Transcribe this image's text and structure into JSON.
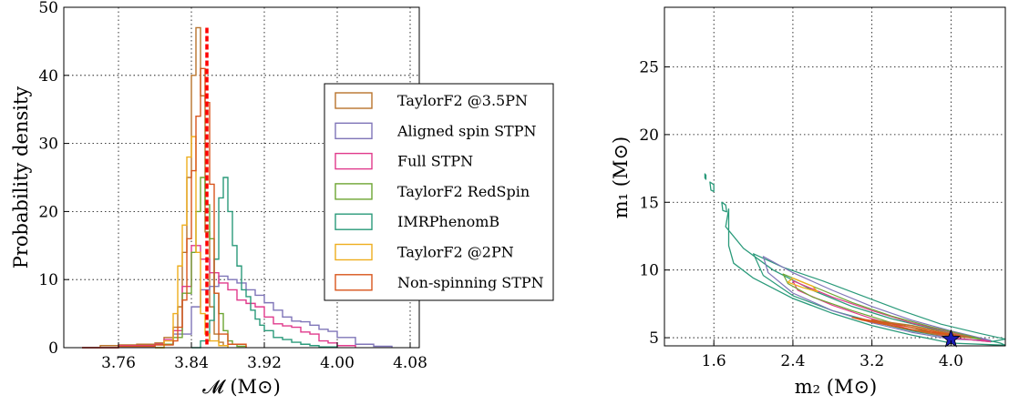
{
  "chart_data": [
    {
      "type": "histogram",
      "title": "",
      "xlabel": "𝓜 (M⊙)",
      "ylabel": "Probability density",
      "xlim": [
        3.7,
        4.09
      ],
      "ylim": [
        0,
        50
      ],
      "xticks": [
        "3.76",
        "3.84",
        "3.92",
        "4.00",
        "4.08"
      ],
      "yticks": [
        "0",
        "10",
        "20",
        "30",
        "40",
        "50"
      ],
      "grid": true,
      "legend_position": "right",
      "true_value_line": {
        "x": 3.857,
        "color": "#ff0000",
        "style": "dashed"
      },
      "series": [
        {
          "name": "TaylorF2 @3.5PN",
          "color": "#b8732c",
          "x": [
            3.72,
            3.74,
            3.76,
            3.78,
            3.8,
            3.81,
            3.82,
            3.825,
            3.83,
            3.835,
            3.84,
            3.845,
            3.85,
            3.855,
            3.86,
            3.865,
            3.87,
            3.875,
            3.88
          ],
          "y": [
            0,
            0.3,
            0.4,
            0.5,
            0.7,
            1.5,
            3,
            6,
            14,
            25,
            40,
            47,
            37,
            17,
            6,
            2,
            0.8,
            0.3,
            0
          ]
        },
        {
          "name": "Aligned spin STPN",
          "color": "#7f75b8",
          "x": [
            3.72,
            3.76,
            3.8,
            3.82,
            3.84,
            3.85,
            3.86,
            3.87,
            3.88,
            3.89,
            3.9,
            3.91,
            3.92,
            3.93,
            3.94,
            3.95,
            3.96,
            3.97,
            3.98,
            3.99,
            4.0,
            4.02,
            4.04,
            4.06
          ],
          "y": [
            0,
            0.2,
            0.5,
            2,
            6,
            8.5,
            9,
            10.5,
            10,
            9.5,
            8.5,
            7.7,
            6.6,
            5.5,
            4.5,
            3.9,
            3.8,
            3.3,
            2.7,
            2.4,
            1.5,
            0.5,
            0.2,
            0
          ]
        },
        {
          "name": "Full STPN",
          "color": "#e03a8c",
          "x": [
            3.72,
            3.76,
            3.8,
            3.81,
            3.82,
            3.83,
            3.84,
            3.85,
            3.86,
            3.87,
            3.88,
            3.89,
            3.9,
            3.91,
            3.92,
            3.93,
            3.94,
            3.95,
            3.96,
            3.97,
            3.98,
            3.99,
            4.0,
            4.02
          ],
          "y": [
            0,
            0.3,
            0.5,
            1.2,
            2.5,
            9,
            15,
            13,
            11,
            9.5,
            8.5,
            7,
            6.5,
            6,
            4.5,
            3.5,
            3.2,
            3,
            2.3,
            2,
            1,
            0.7,
            0.3,
            0
          ]
        },
        {
          "name": "TaylorF2 RedSpin",
          "color": "#6da532",
          "x": [
            3.8,
            3.81,
            3.82,
            3.83,
            3.84,
            3.845,
            3.85,
            3.855,
            3.86,
            3.865,
            3.87,
            3.875,
            3.88,
            3.885,
            3.89,
            3.9
          ],
          "y": [
            0,
            0.5,
            1.5,
            8,
            14,
            20,
            25,
            21,
            16,
            8,
            5,
            2.5,
            1,
            0.5,
            0.2,
            0
          ]
        },
        {
          "name": "IMRPhenomB",
          "color": "#2a9a7a",
          "x": [
            3.84,
            3.85,
            3.86,
            3.865,
            3.87,
            3.875,
            3.88,
            3.885,
            3.89,
            3.895,
            3.9,
            3.905,
            3.91,
            3.915,
            3.92,
            3.93,
            3.94,
            3.95,
            3.96,
            3.97,
            3.98,
            4.0
          ],
          "y": [
            0,
            1,
            4,
            13,
            22,
            25,
            20,
            15,
            12,
            8.5,
            7.5,
            5.5,
            4.2,
            3.3,
            2.5,
            1.5,
            1.2,
            0.8,
            0.5,
            0.3,
            0.1,
            0
          ]
        },
        {
          "name": "TaylorF2 @2PN",
          "color": "#eeae1e",
          "x": [
            3.8,
            3.81,
            3.82,
            3.825,
            3.83,
            3.835,
            3.84,
            3.845,
            3.85,
            3.855,
            3.86,
            3.87,
            3.88
          ],
          "y": [
            0,
            1,
            5,
            12,
            18,
            28,
            31,
            14,
            5,
            2,
            1,
            0.3,
            0
          ]
        },
        {
          "name": "Non-spinning STPN",
          "color": "#d8551c",
          "x": [
            3.72,
            3.76,
            3.8,
            3.82,
            3.825,
            3.83,
            3.835,
            3.84,
            3.845,
            3.85,
            3.855,
            3.86,
            3.865,
            3.87,
            3.88,
            3.9
          ],
          "y": [
            0,
            0.2,
            0.4,
            1,
            3,
            7,
            16,
            26,
            34,
            41,
            36,
            24,
            8,
            2,
            0.5,
            0
          ]
        }
      ]
    },
    {
      "type": "contour",
      "title": "",
      "xlabel": "m₂ (M⊙)",
      "ylabel": "m₁ (M⊙)",
      "xlim": [
        1.1,
        4.55
      ],
      "ylim": [
        4.4,
        29.4
      ],
      "xticks": [
        "1.6",
        "2.4",
        "3.2",
        "4.0"
      ],
      "yticks": [
        "5",
        "10",
        "15",
        "20",
        "25"
      ],
      "grid": true,
      "true_value_marker": {
        "m2": 4.0,
        "m1": 4.9,
        "shape": "star",
        "color": "#1a1ab5"
      }
    }
  ]
}
